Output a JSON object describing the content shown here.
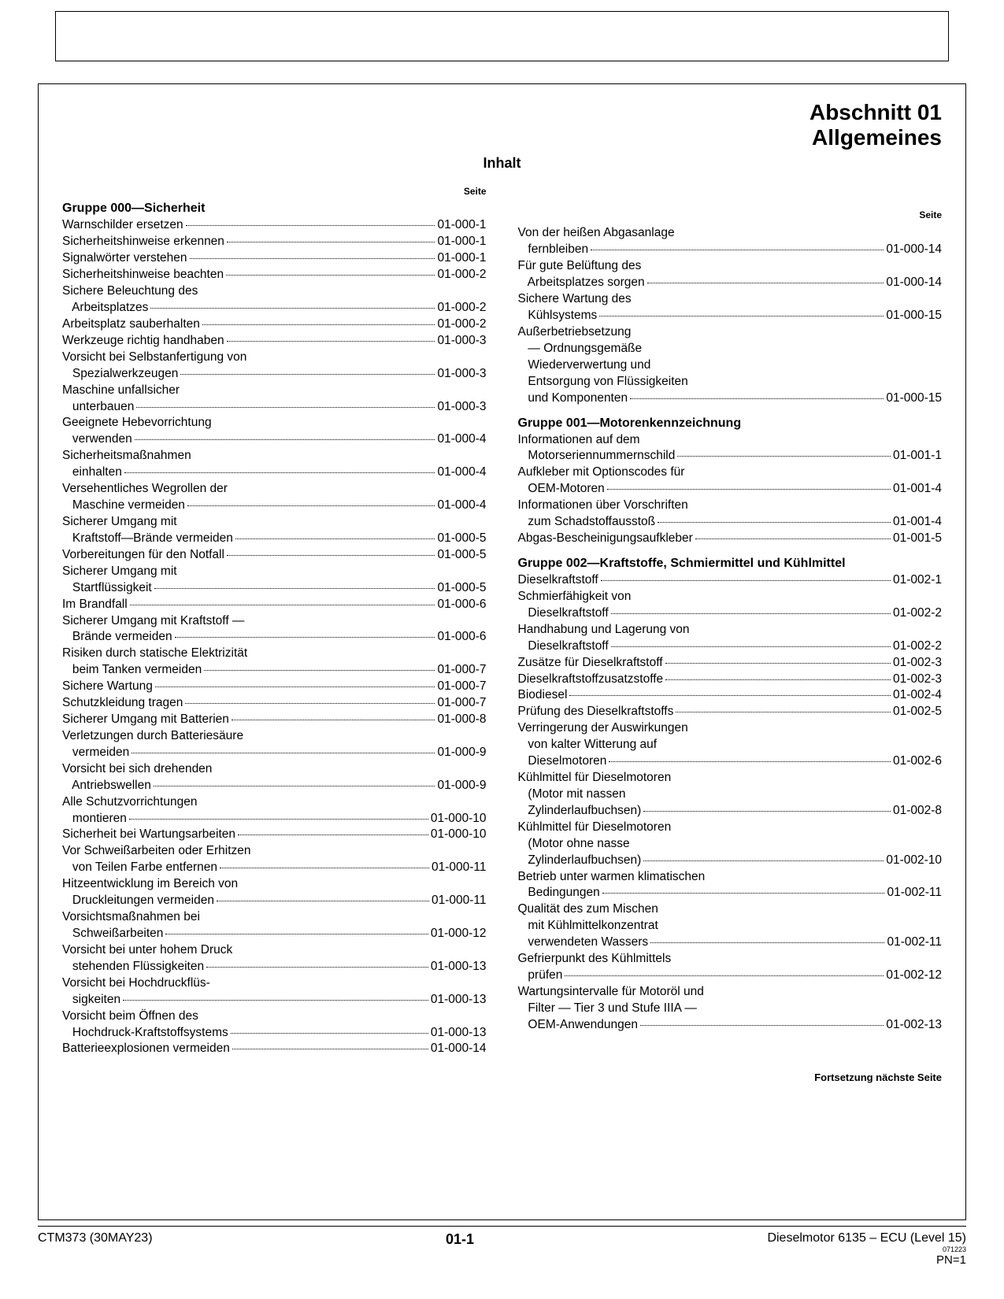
{
  "section_line1": "Abschnitt 01",
  "section_line2": "Allgemeines",
  "inhalt": "Inhalt",
  "seite": "Seite",
  "cont_note": "Fortsetzung nächste Seite",
  "footer": {
    "left": "CTM373 (30MAY23)",
    "mid": "01-1",
    "right": "Dieselmotor 6135 – ECU (Level 15)",
    "tiny": "071223",
    "pn": "PN=1"
  },
  "left_col": [
    {
      "type": "group",
      "text": "Gruppe 000—Sicherheit"
    },
    {
      "type": "entry",
      "label": "Warnschilder ersetzen",
      "pg": "01-000-1"
    },
    {
      "type": "entry",
      "label": "Sicherheitshinweise erkennen",
      "pg": "01-000-1"
    },
    {
      "type": "entry",
      "label": "Signalwörter verstehen",
      "pg": "01-000-1"
    },
    {
      "type": "entry",
      "label": "Sicherheitshinweise beachten",
      "pg": "01-000-2"
    },
    {
      "type": "cont",
      "text": "Sichere Beleuchtung des"
    },
    {
      "type": "entry",
      "label": "   Arbeitsplatzes",
      "pg": "01-000-2"
    },
    {
      "type": "entry",
      "label": "Arbeitsplatz sauberhalten",
      "pg": "01-000-2"
    },
    {
      "type": "entry",
      "label": "Werkzeuge richtig handhaben",
      "pg": "01-000-3"
    },
    {
      "type": "cont",
      "text": "Vorsicht bei Selbstanfertigung von"
    },
    {
      "type": "entry",
      "label": "   Spezialwerkzeugen",
      "pg": "01-000-3"
    },
    {
      "type": "cont",
      "text": "Maschine unfallsicher"
    },
    {
      "type": "entry",
      "label": "   unterbauen",
      "pg": "01-000-3"
    },
    {
      "type": "cont",
      "text": "Geeignete Hebevorrichtung"
    },
    {
      "type": "entry",
      "label": "   verwenden",
      "pg": "01-000-4"
    },
    {
      "type": "cont",
      "text": "Sicherheitsmaßnahmen"
    },
    {
      "type": "entry",
      "label": "   einhalten",
      "pg": "01-000-4"
    },
    {
      "type": "cont",
      "text": "Versehentliches Wegrollen der"
    },
    {
      "type": "entry",
      "label": "   Maschine vermeiden",
      "pg": "01-000-4"
    },
    {
      "type": "cont",
      "text": "Sicherer Umgang mit"
    },
    {
      "type": "entry",
      "label": "   Kraftstoff—Brände vermeiden",
      "pg": "01-000-5"
    },
    {
      "type": "entry",
      "label": "Vorbereitungen für den Notfall",
      "pg": "01-000-5"
    },
    {
      "type": "cont",
      "text": "Sicherer Umgang mit"
    },
    {
      "type": "entry",
      "label": "   Startflüssigkeit",
      "pg": "01-000-5"
    },
    {
      "type": "entry",
      "label": "Im Brandfall",
      "pg": "01-000-6"
    },
    {
      "type": "cont",
      "text": "Sicherer Umgang mit Kraftstoff —"
    },
    {
      "type": "entry",
      "label": "   Brände vermeiden",
      "pg": "01-000-6"
    },
    {
      "type": "cont",
      "text": "Risiken durch statische Elektrizität"
    },
    {
      "type": "entry",
      "label": "   beim Tanken vermeiden",
      "pg": "01-000-7"
    },
    {
      "type": "entry",
      "label": "Sichere Wartung",
      "pg": "01-000-7"
    },
    {
      "type": "entry",
      "label": "Schutzkleidung tragen",
      "pg": "01-000-7"
    },
    {
      "type": "entry",
      "label": "Sicherer Umgang mit Batterien",
      "pg": "01-000-8"
    },
    {
      "type": "cont",
      "text": "Verletzungen durch Batteriesäure"
    },
    {
      "type": "entry",
      "label": "   vermeiden",
      "pg": "01-000-9"
    },
    {
      "type": "cont",
      "text": "Vorsicht bei sich drehenden"
    },
    {
      "type": "entry",
      "label": "   Antriebswellen",
      "pg": "01-000-9"
    },
    {
      "type": "cont",
      "text": "Alle Schutzvorrichtungen"
    },
    {
      "type": "entry",
      "label": "   montieren",
      "pg": "01-000-10"
    },
    {
      "type": "entry",
      "label": "Sicherheit bei Wartungsarbeiten",
      "pg": "01-000-10"
    },
    {
      "type": "cont",
      "text": "Vor Schweißarbeiten oder Erhitzen"
    },
    {
      "type": "entry",
      "label": "   von Teilen Farbe entfernen",
      "pg": "01-000-11"
    },
    {
      "type": "cont",
      "text": "Hitzeentwicklung im Bereich von"
    },
    {
      "type": "entry",
      "label": "   Druckleitungen vermeiden",
      "pg": "01-000-11"
    },
    {
      "type": "cont",
      "text": "Vorsichtsmaßnahmen bei"
    },
    {
      "type": "entry",
      "label": "   Schweißarbeiten",
      "pg": "01-000-12"
    },
    {
      "type": "cont",
      "text": "Vorsicht bei unter hohem Druck"
    },
    {
      "type": "entry",
      "label": "   stehenden Flüssigkeiten",
      "pg": "01-000-13"
    },
    {
      "type": "cont",
      "text": "Vorsicht bei Hochdruckflüs-"
    },
    {
      "type": "entry",
      "label": "   sigkeiten",
      "pg": "01-000-13"
    },
    {
      "type": "cont",
      "text": "Vorsicht beim Öffnen des"
    },
    {
      "type": "entry",
      "label": "   Hochdruck-Kraftstoffsystems",
      "pg": "01-000-13"
    },
    {
      "type": "entry",
      "label": "Batterieexplosionen vermeiden",
      "pg": "01-000-14"
    }
  ],
  "right_col": [
    {
      "type": "cont",
      "text": "Von der heißen Abgasanlage"
    },
    {
      "type": "entry",
      "label": "   fernbleiben",
      "pg": "01-000-14"
    },
    {
      "type": "cont",
      "text": "Für gute Belüftung des"
    },
    {
      "type": "entry",
      "label": "   Arbeitsplatzes sorgen",
      "pg": "01-000-14"
    },
    {
      "type": "cont",
      "text": "Sichere Wartung des"
    },
    {
      "type": "entry",
      "label": "   Kühlsystems",
      "pg": "01-000-15"
    },
    {
      "type": "cont",
      "text": "Außerbetriebsetzung"
    },
    {
      "type": "cont",
      "text": "   — Ordnungsgemäße"
    },
    {
      "type": "cont",
      "text": "   Wiederverwertung und"
    },
    {
      "type": "cont",
      "text": "   Entsorgung von Flüssigkeiten"
    },
    {
      "type": "entry",
      "label": "   und Komponenten",
      "pg": "01-000-15"
    },
    {
      "type": "group",
      "text": "Gruppe 001—Motorenkennzeichnung"
    },
    {
      "type": "cont",
      "text": "Informationen auf dem"
    },
    {
      "type": "entry",
      "label": "   Motorseriennummernschild",
      "pg": "01-001-1"
    },
    {
      "type": "cont",
      "text": "Aufkleber mit Optionscodes für"
    },
    {
      "type": "entry",
      "label": "   OEM-Motoren",
      "pg": "01-001-4"
    },
    {
      "type": "cont",
      "text": "Informationen über Vorschriften"
    },
    {
      "type": "entry",
      "label": "   zum Schadstoffausstoß",
      "pg": "01-001-4"
    },
    {
      "type": "entry",
      "label": "Abgas-Bescheinigungsaufkleber",
      "pg": "01-001-5"
    },
    {
      "type": "group",
      "text": "Gruppe 002—Kraftstoffe, Schmiermittel und Kühlmittel"
    },
    {
      "type": "entry",
      "label": "Dieselkraftstoff",
      "pg": "01-002-1"
    },
    {
      "type": "cont",
      "text": "Schmierfähigkeit von"
    },
    {
      "type": "entry",
      "label": "   Dieselkraftstoff",
      "pg": "01-002-2"
    },
    {
      "type": "cont",
      "text": "Handhabung und Lagerung von"
    },
    {
      "type": "entry",
      "label": "   Dieselkraftstoff",
      "pg": "01-002-2"
    },
    {
      "type": "entry",
      "label": "Zusätze für Dieselkraftstoff",
      "pg": "01-002-3"
    },
    {
      "type": "entry",
      "label": "Dieselkraftstoffzusatzstoffe",
      "pg": "01-002-3"
    },
    {
      "type": "entry",
      "label": "Biodiesel",
      "pg": "01-002-4"
    },
    {
      "type": "entry",
      "label": "Prüfung des Dieselkraftstoffs",
      "pg": "01-002-5"
    },
    {
      "type": "cont",
      "text": "Verringerung der Auswirkungen"
    },
    {
      "type": "cont",
      "text": "   von kalter Witterung auf"
    },
    {
      "type": "entry",
      "label": "   Dieselmotoren",
      "pg": "01-002-6"
    },
    {
      "type": "cont",
      "text": "Kühlmittel für Dieselmotoren"
    },
    {
      "type": "cont",
      "text": "   (Motor mit nassen"
    },
    {
      "type": "entry",
      "label": "   Zylinderlaufbuchsen)",
      "pg": "01-002-8"
    },
    {
      "type": "cont",
      "text": "Kühlmittel für Dieselmotoren"
    },
    {
      "type": "cont",
      "text": "   (Motor ohne nasse"
    },
    {
      "type": "entry",
      "label": "   Zylinderlaufbuchsen)",
      "pg": "01-002-10"
    },
    {
      "type": "cont",
      "text": "Betrieb unter warmen klimatischen"
    },
    {
      "type": "entry",
      "label": "   Bedingungen",
      "pg": "01-002-11"
    },
    {
      "type": "cont",
      "text": "Qualität des zum Mischen"
    },
    {
      "type": "cont",
      "text": "   mit Kühlmittelkonzentrat"
    },
    {
      "type": "entry",
      "label": "   verwendeten Wassers",
      "pg": "01-002-11"
    },
    {
      "type": "cont",
      "text": "Gefrierpunkt des Kühlmittels"
    },
    {
      "type": "entry",
      "label": "   prüfen",
      "pg": "01-002-12"
    },
    {
      "type": "cont",
      "text": "Wartungsintervalle für Motoröl und"
    },
    {
      "type": "cont",
      "text": "   Filter — Tier 3 und Stufe IIIA —"
    },
    {
      "type": "entry",
      "label": "   OEM-Anwendungen",
      "pg": "01-002-13"
    }
  ]
}
